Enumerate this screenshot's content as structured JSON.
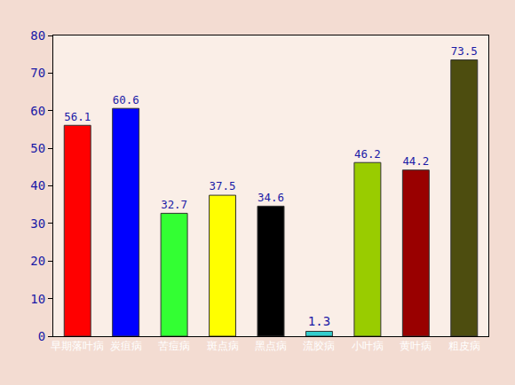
{
  "chart_data": {
    "type": "bar",
    "categories": [
      "早期落叶病",
      "炭疽病",
      "苦痘病",
      "斑点病",
      "黑点病",
      "流胶病",
      "小叶病",
      "黄叶病",
      "粗皮病"
    ],
    "values": [
      56.1,
      60.6,
      32.7,
      37.5,
      34.6,
      1.3,
      46.2,
      44.2,
      73.5
    ],
    "colors": [
      "#ff0000",
      "#0000ff",
      "#33ff33",
      "#ffff00",
      "#000000",
      "#33cccc",
      "#99cc00",
      "#990000",
      "#4d4d0f"
    ],
    "ylim": [
      0,
      80
    ],
    "yticks": [
      0,
      10,
      20,
      30,
      40,
      50,
      60,
      70,
      80
    ],
    "data_labels": true,
    "grid": false
  }
}
